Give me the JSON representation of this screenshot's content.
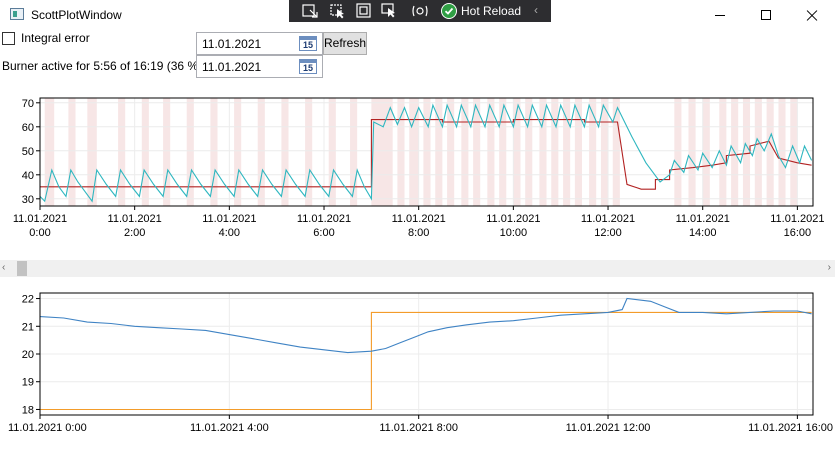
{
  "window": {
    "title": "ScottPlotWindow"
  },
  "devtools": {
    "hot_reload_label": "Hot Reload"
  },
  "controls": {
    "integral_error_label": "Integral error",
    "integral_error_checked": false,
    "status_text": "Burner active for 5:56 of 16:19 (36 %)",
    "date_from": "11.01.2021",
    "date_to": "11.01.2021",
    "calendar_icon_text": "15",
    "refresh_label": "Refresh"
  },
  "colors": {
    "burner_band": "#f7e6e6",
    "temperature_line": "#2fb7c0",
    "setpoint_line": "#b22222",
    "room_line": "#3f83c4",
    "room_setpoint_line": "#f39c2a"
  },
  "chart_data": [
    {
      "type": "line",
      "title": "",
      "xlabel": "",
      "ylabel": "",
      "xlim": [
        0,
        16.33
      ],
      "ylim": [
        27,
        72
      ],
      "x_ticks": [
        {
          "x": 0,
          "label": "11.01.2021\n0:00"
        },
        {
          "x": 2,
          "label": "11.01.2021\n2:00"
        },
        {
          "x": 4,
          "label": "11.01.2021\n4:00"
        },
        {
          "x": 6,
          "label": "11.01.2021\n6:00"
        },
        {
          "x": 8,
          "label": "11.01.2021\n8:00"
        },
        {
          "x": 10,
          "label": "11.01.2021\n10:00"
        },
        {
          "x": 12,
          "label": "11.01.2021\n12:00"
        },
        {
          "x": 14,
          "label": "11.01.2021\n14:00"
        },
        {
          "x": 16,
          "label": "11.01.2021\n16:00"
        }
      ],
      "y_ticks": [
        30,
        40,
        50,
        60,
        70
      ],
      "grid": true,
      "burner_active_hours": [
        [
          0.1,
          0.3
        ],
        [
          0.6,
          0.75
        ],
        [
          1.0,
          1.2
        ],
        [
          1.65,
          1.8
        ],
        [
          2.15,
          2.3
        ],
        [
          2.6,
          2.75
        ],
        [
          3.1,
          3.25
        ],
        [
          3.6,
          3.75
        ],
        [
          4.1,
          4.25
        ],
        [
          4.6,
          4.75
        ],
        [
          5.1,
          5.25
        ],
        [
          5.6,
          5.75
        ],
        [
          6.1,
          6.25
        ],
        [
          6.55,
          6.7
        ],
        [
          7.0,
          7.45
        ],
        [
          7.55,
          7.7
        ],
        [
          7.8,
          8.0
        ],
        [
          8.1,
          8.25
        ],
        [
          8.35,
          8.5
        ],
        [
          8.6,
          8.75
        ],
        [
          8.9,
          9.05
        ],
        [
          9.15,
          9.3
        ],
        [
          9.45,
          9.6
        ],
        [
          9.7,
          9.85
        ],
        [
          10.0,
          10.15
        ],
        [
          10.25,
          10.4
        ],
        [
          10.55,
          10.7
        ],
        [
          10.8,
          10.95
        ],
        [
          11.05,
          11.2
        ],
        [
          11.3,
          11.45
        ],
        [
          11.6,
          11.75
        ],
        [
          11.85,
          12.0
        ],
        [
          12.1,
          12.25
        ],
        [
          13.4,
          13.55
        ],
        [
          13.7,
          13.85
        ],
        [
          14.0,
          14.15
        ],
        [
          14.35,
          14.5
        ],
        [
          14.6,
          14.75
        ],
        [
          14.85,
          15.0
        ],
        [
          15.1,
          15.25
        ],
        [
          15.35,
          15.5
        ],
        [
          15.6,
          15.75
        ],
        [
          15.85,
          16.0
        ]
      ],
      "series": [
        {
          "name": "",
          "role": "target",
          "points": [
            [
              0,
              35
            ],
            [
              7.0,
              35
            ],
            [
              7.0,
              63
            ],
            [
              8.5,
              63
            ],
            [
              8.5,
              62
            ],
            [
              10.0,
              62
            ],
            [
              10.0,
              63
            ],
            [
              11.5,
              63
            ],
            [
              11.5,
              62
            ],
            [
              12.2,
              62
            ],
            [
              12.4,
              36
            ],
            [
              12.7,
              34
            ],
            [
              13.0,
              34
            ],
            [
              13.0,
              38
            ],
            [
              13.3,
              38
            ],
            [
              13.3,
              42
            ],
            [
              13.8,
              43
            ],
            [
              14.2,
              44
            ],
            [
              14.5,
              45
            ],
            [
              14.5,
              48
            ],
            [
              15.0,
              49
            ],
            [
              15.0,
              52
            ],
            [
              15.4,
              54
            ],
            [
              15.6,
              47
            ],
            [
              16.0,
              45
            ],
            [
              16.3,
              44
            ]
          ]
        },
        {
          "name": "",
          "role": "temperature",
          "points": [
            [
              0,
              31
            ],
            [
              0.1,
              29
            ],
            [
              0.25,
              42
            ],
            [
              0.4,
              35
            ],
            [
              0.55,
              31
            ],
            [
              0.65,
              42
            ],
            [
              0.8,
              37
            ],
            [
              0.95,
              33
            ],
            [
              1.1,
              29
            ],
            [
              1.2,
              42
            ],
            [
              1.4,
              36
            ],
            [
              1.6,
              31
            ],
            [
              1.7,
              42
            ],
            [
              1.9,
              36
            ],
            [
              2.1,
              31
            ],
            [
              2.2,
              42
            ],
            [
              2.4,
              36
            ],
            [
              2.6,
              31
            ],
            [
              2.7,
              42
            ],
            [
              2.9,
              36
            ],
            [
              3.1,
              31
            ],
            [
              3.2,
              42
            ],
            [
              3.4,
              36
            ],
            [
              3.6,
              31
            ],
            [
              3.7,
              42
            ],
            [
              3.9,
              36
            ],
            [
              4.1,
              31
            ],
            [
              4.2,
              42
            ],
            [
              4.4,
              36
            ],
            [
              4.6,
              31
            ],
            [
              4.7,
              42
            ],
            [
              4.9,
              36
            ],
            [
              5.1,
              31
            ],
            [
              5.2,
              42
            ],
            [
              5.4,
              36
            ],
            [
              5.6,
              31
            ],
            [
              5.7,
              42
            ],
            [
              5.9,
              36
            ],
            [
              6.1,
              31
            ],
            [
              6.2,
              42
            ],
            [
              6.4,
              36
            ],
            [
              6.6,
              31
            ],
            [
              6.7,
              42
            ],
            [
              6.85,
              35
            ],
            [
              7.0,
              30
            ],
            [
              7.05,
              62
            ],
            [
              7.25,
              60
            ],
            [
              7.4,
              68
            ],
            [
              7.55,
              61
            ],
            [
              7.7,
              68
            ],
            [
              7.85,
              60
            ],
            [
              8.0,
              68
            ],
            [
              8.2,
              60
            ],
            [
              8.3,
              69
            ],
            [
              8.5,
              60
            ],
            [
              8.6,
              69
            ],
            [
              8.8,
              60
            ],
            [
              8.9,
              69
            ],
            [
              9.1,
              60
            ],
            [
              9.2,
              69
            ],
            [
              9.4,
              60
            ],
            [
              9.5,
              69
            ],
            [
              9.7,
              60
            ],
            [
              9.8,
              69
            ],
            [
              10.0,
              60
            ],
            [
              10.1,
              69
            ],
            [
              10.3,
              60
            ],
            [
              10.4,
              69
            ],
            [
              10.6,
              60
            ],
            [
              10.7,
              69
            ],
            [
              10.9,
              60
            ],
            [
              11.0,
              69
            ],
            [
              11.2,
              60
            ],
            [
              11.3,
              69
            ],
            [
              11.5,
              60
            ],
            [
              11.6,
              69
            ],
            [
              11.8,
              60
            ],
            [
              11.9,
              69
            ],
            [
              12.1,
              62
            ],
            [
              12.2,
              68
            ],
            [
              12.5,
              56
            ],
            [
              12.8,
              45
            ],
            [
              13.1,
              37
            ],
            [
              13.3,
              40
            ],
            [
              13.4,
              46
            ],
            [
              13.6,
              41
            ],
            [
              13.7,
              48
            ],
            [
              13.9,
              42
            ],
            [
              14.0,
              49
            ],
            [
              14.2,
              43
            ],
            [
              14.35,
              50
            ],
            [
              14.5,
              44
            ],
            [
              14.6,
              52
            ],
            [
              14.8,
              45
            ],
            [
              14.9,
              53
            ],
            [
              15.05,
              48
            ],
            [
              15.15,
              55
            ],
            [
              15.3,
              50
            ],
            [
              15.45,
              57
            ],
            [
              15.6,
              48
            ],
            [
              15.75,
              43
            ],
            [
              15.9,
              52
            ],
            [
              16.05,
              45
            ],
            [
              16.15,
              52
            ],
            [
              16.3,
              46
            ]
          ]
        }
      ]
    },
    {
      "type": "line",
      "title": "",
      "xlabel": "",
      "ylabel": "",
      "xlim": [
        0,
        16.33
      ],
      "ylim": [
        17.8,
        22.2
      ],
      "x_ticks": [
        {
          "x": 0,
          "label": "11.01.2021 0:00"
        },
        {
          "x": 4,
          "label": "11.01.2021 4:00"
        },
        {
          "x": 8,
          "label": "11.01.2021 8:00"
        },
        {
          "x": 12,
          "label": "11.01.2021 12:00"
        },
        {
          "x": 16,
          "label": "11.01.2021 16:00"
        }
      ],
      "y_ticks": [
        18,
        19,
        20,
        21,
        22
      ],
      "grid": true,
      "series": [
        {
          "name": "",
          "role": "room_setpoint",
          "points": [
            [
              0,
              18.0
            ],
            [
              7.0,
              18.0
            ],
            [
              7.0,
              21.5
            ],
            [
              16.3,
              21.5
            ]
          ]
        },
        {
          "name": "",
          "role": "room_temperature",
          "points": [
            [
              0,
              21.35
            ],
            [
              0.5,
              21.3
            ],
            [
              1.0,
              21.15
            ],
            [
              1.5,
              21.1
            ],
            [
              2.0,
              21.0
            ],
            [
              2.5,
              20.95
            ],
            [
              3.0,
              20.9
            ],
            [
              3.5,
              20.85
            ],
            [
              4.0,
              20.7
            ],
            [
              4.5,
              20.55
            ],
            [
              5.0,
              20.4
            ],
            [
              5.5,
              20.25
            ],
            [
              6.0,
              20.15
            ],
            [
              6.5,
              20.05
            ],
            [
              7.0,
              20.1
            ],
            [
              7.3,
              20.2
            ],
            [
              7.6,
              20.4
            ],
            [
              7.9,
              20.6
            ],
            [
              8.2,
              20.8
            ],
            [
              8.6,
              20.95
            ],
            [
              9.0,
              21.05
            ],
            [
              9.5,
              21.15
            ],
            [
              10.0,
              21.2
            ],
            [
              10.5,
              21.3
            ],
            [
              11.0,
              21.4
            ],
            [
              11.5,
              21.45
            ],
            [
              12.0,
              21.5
            ],
            [
              12.3,
              21.6
            ],
            [
              12.4,
              22.0
            ],
            [
              12.9,
              21.9
            ],
            [
              13.2,
              21.7
            ],
            [
              13.5,
              21.5
            ],
            [
              14.0,
              21.5
            ],
            [
              14.5,
              21.45
            ],
            [
              15.0,
              21.5
            ],
            [
              15.5,
              21.55
            ],
            [
              16.0,
              21.55
            ],
            [
              16.3,
              21.45
            ]
          ]
        }
      ]
    }
  ]
}
